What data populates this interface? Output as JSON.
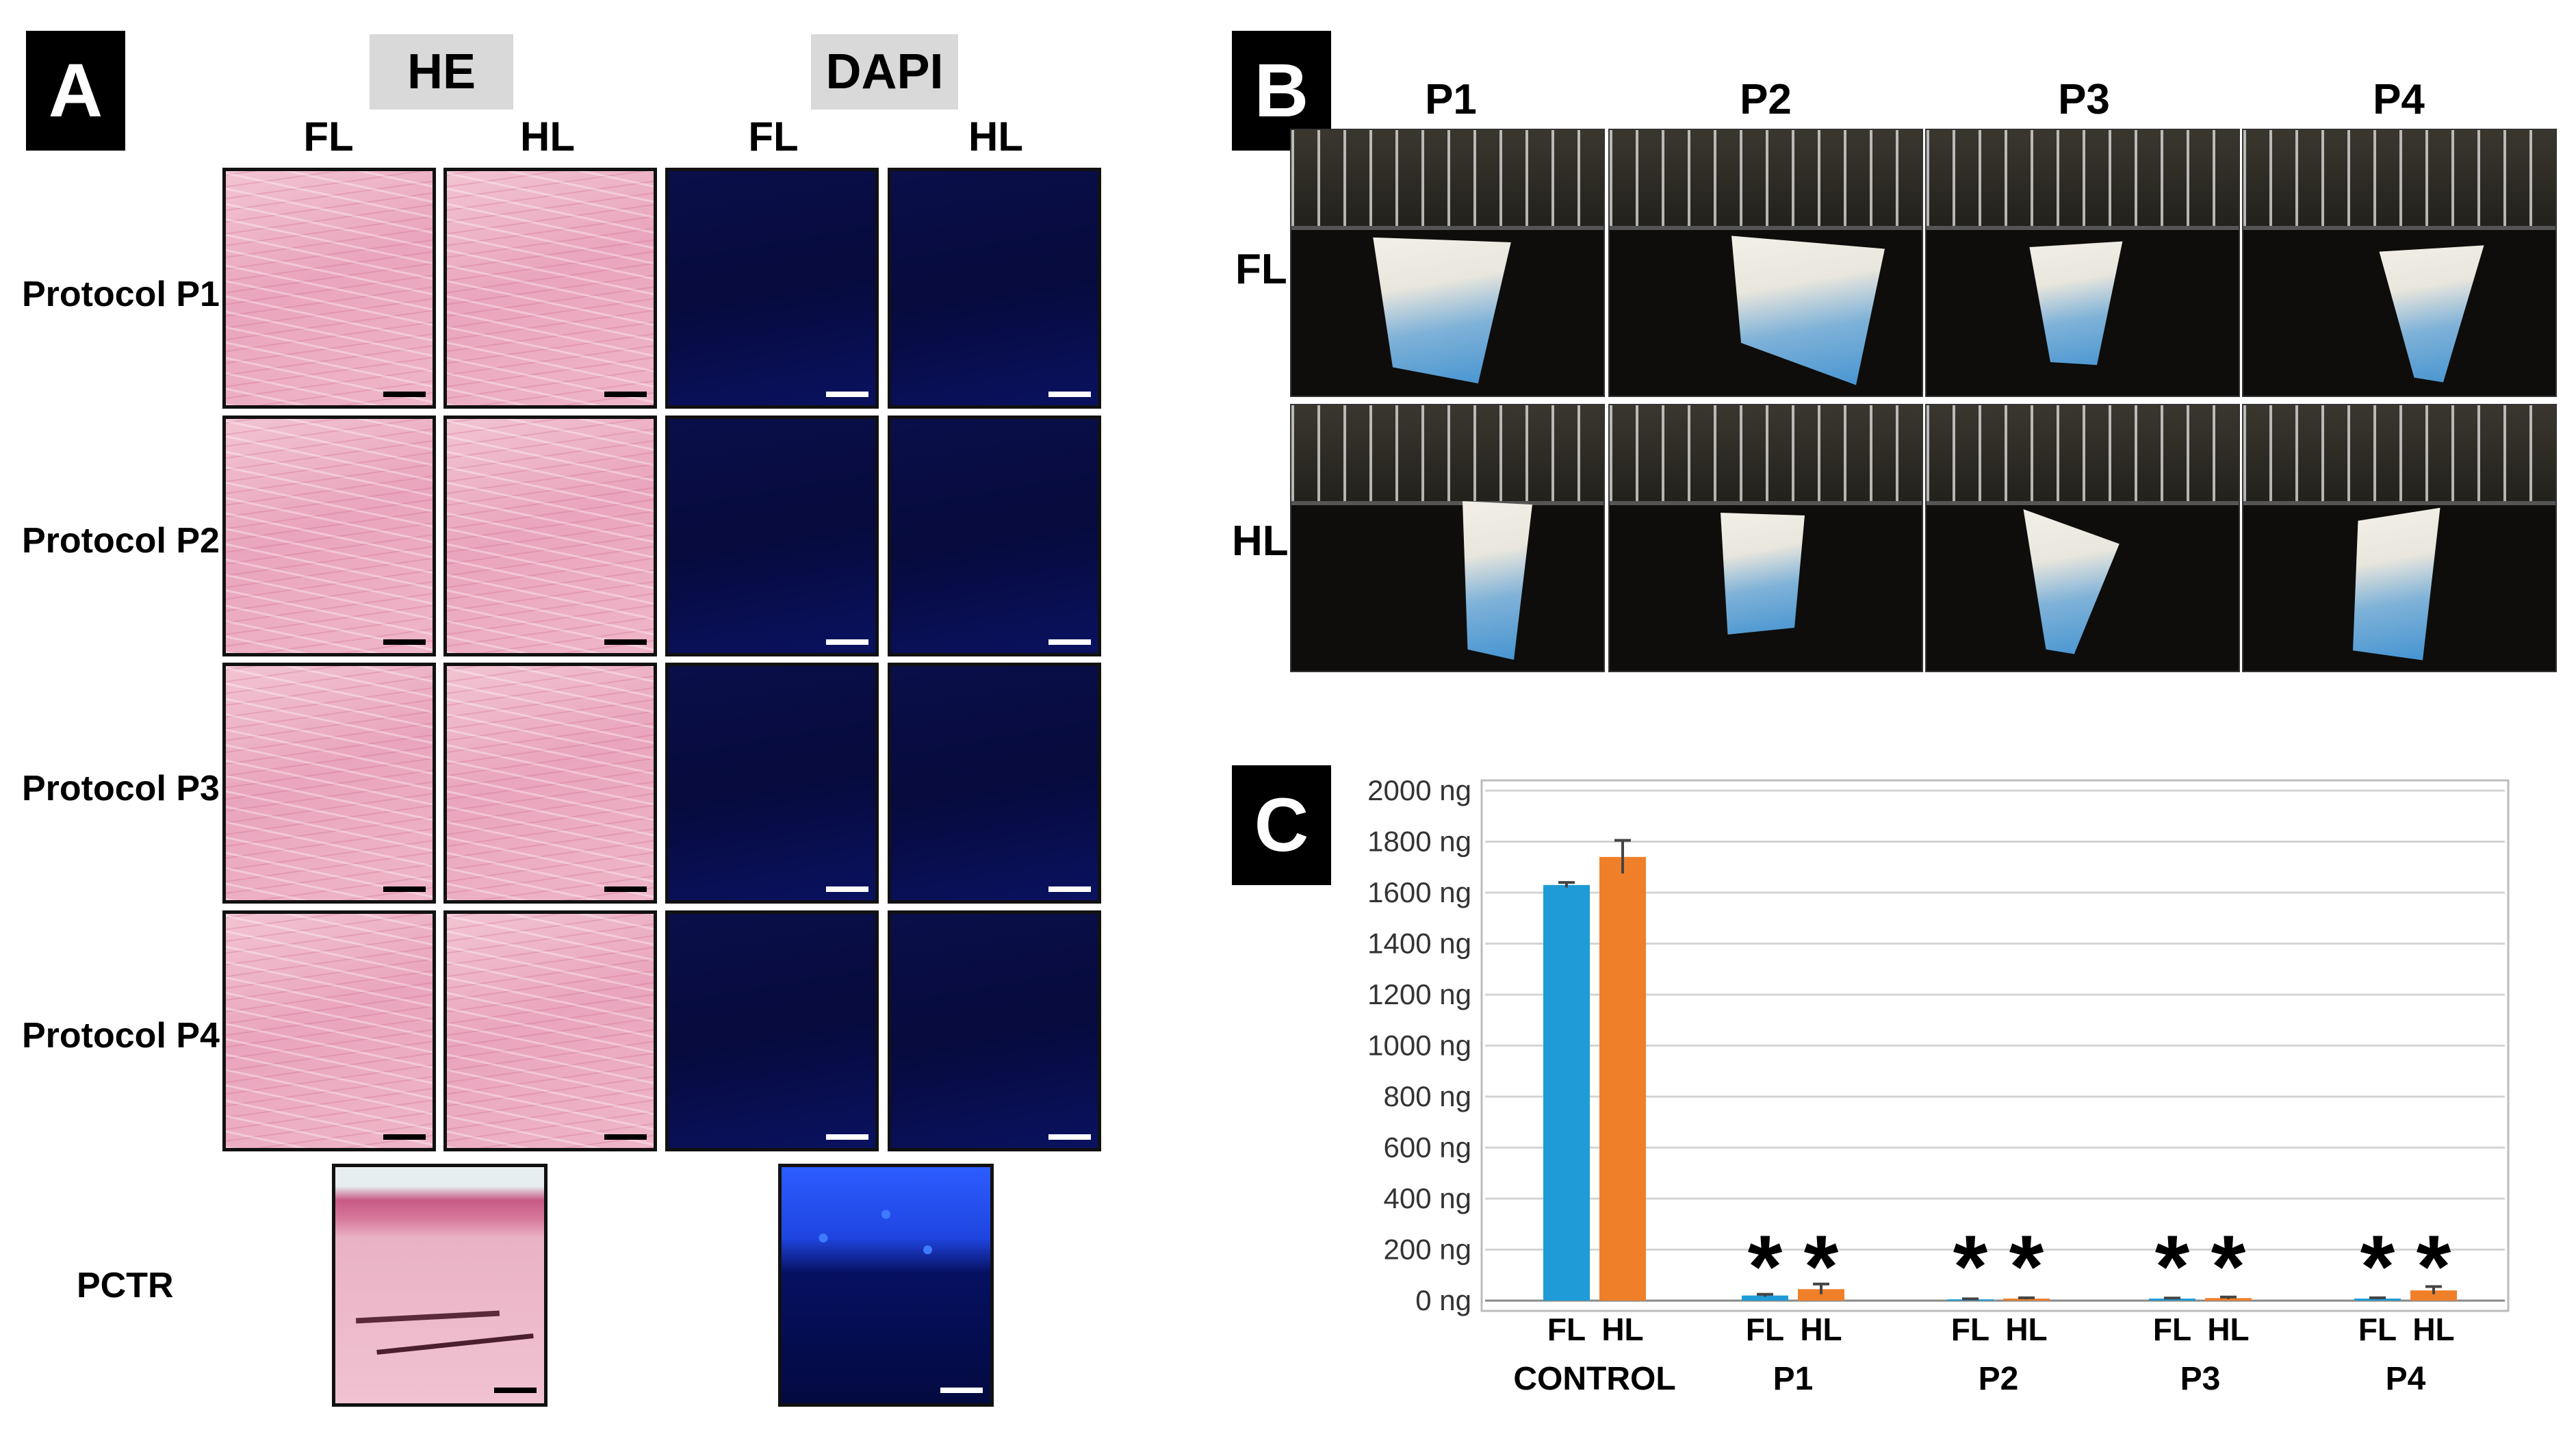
{
  "panels": {
    "a": "A",
    "b": "B",
    "c": "C"
  },
  "panel_a": {
    "stains": {
      "he": "HE",
      "dapi": "DAPI"
    },
    "columns": [
      "FL",
      "HL",
      "FL",
      "HL"
    ],
    "rows": [
      "Protocol P1",
      "Protocol P2",
      "Protocol P3",
      "Protocol P4"
    ],
    "control_label": "PCTR"
  },
  "panel_b": {
    "columns": [
      "P1",
      "P2",
      "P3",
      "P4"
    ],
    "rows": [
      "FL",
      "HL"
    ]
  },
  "chart_data": {
    "type": "bar",
    "groups": [
      "CONTROL",
      "P1",
      "P2",
      "P3",
      "P4"
    ],
    "sub_labels": [
      "FL",
      "HL"
    ],
    "series": [
      {
        "name": "FL",
        "color": "#1f9bd7",
        "values": [
          1630,
          20,
          5,
          8,
          8
        ],
        "errors": [
          10,
          5,
          2,
          2,
          3
        ]
      },
      {
        "name": "HL",
        "color": "#f07f2a",
        "values": [
          1740,
          45,
          8,
          10,
          40
        ],
        "errors": [
          65,
          20,
          3,
          4,
          15
        ]
      }
    ],
    "significance": [
      "",
      "*",
      "*",
      "*",
      "*"
    ],
    "ylim": [
      0,
      2000
    ],
    "yticks": [
      "2000 ng",
      "1800 ng",
      "1600 ng",
      "1400 ng",
      "1200 ng",
      "1000 ng",
      "800 ng",
      "600 ng",
      "400 ng",
      "200 ng",
      "0 ng"
    ],
    "ytick_values": [
      2000,
      1800,
      1600,
      1400,
      1200,
      1000,
      800,
      600,
      400,
      200,
      0
    ],
    "grid": true
  }
}
